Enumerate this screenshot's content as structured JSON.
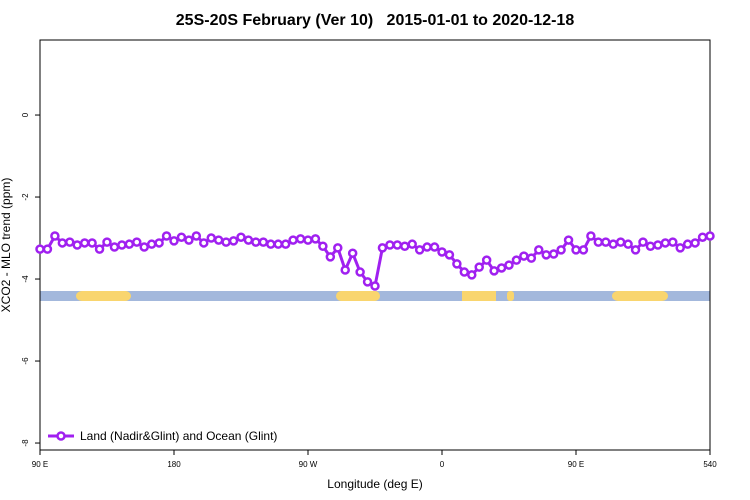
{
  "chart_data": {
    "type": "line",
    "title": "25S-20S February (Ver 10)   2015-01-01 to 2020-12-18",
    "x_label": "Longitude (deg E)",
    "y_label": "XCO2 - MLO trend (ppm)",
    "xlim": [
      90,
      540
    ],
    "ylim": [
      -8.17,
      1.83
    ],
    "xticks": [
      {
        "value": 90,
        "label": "90 E"
      },
      180,
      {
        "value": 270,
        "label": "90 W"
      },
      {
        "value": 360,
        "label": "0"
      },
      {
        "value": 450,
        "label": "90 E"
      },
      540
    ],
    "yticks": [
      0,
      -2,
      -4,
      -6,
      -8
    ],
    "legend": "bottom-left",
    "x": [
      90,
      95,
      100,
      105,
      110,
      115,
      120,
      125,
      130,
      135,
      140,
      145,
      150,
      155,
      160,
      165,
      170,
      175,
      180,
      185,
      190,
      195,
      200,
      205,
      210,
      215,
      220,
      225,
      230,
      235,
      240,
      245,
      250,
      255,
      260,
      265,
      270,
      275,
      280,
      285,
      290,
      295,
      300,
      305,
      310,
      315,
      320,
      325,
      330,
      335,
      340,
      345,
      350,
      355,
      360,
      365,
      370,
      375,
      380,
      385,
      390,
      395,
      400,
      405,
      410,
      415,
      420,
      425,
      430,
      435,
      440,
      445,
      450,
      455,
      460,
      465,
      470,
      475,
      480,
      485,
      490,
      495,
      500,
      505,
      510,
      515,
      520,
      525,
      530,
      535,
      540
    ],
    "series": [
      {
        "name": "Land (Nadir&Glint) and Ocean (Glint)",
        "color": "#a020f0",
        "values": [
          -3.27,
          -3.27,
          -2.95,
          -3.12,
          -3.1,
          -3.17,
          -3.12,
          -3.12,
          -3.27,
          -3.1,
          -3.22,
          -3.17,
          -3.15,
          -3.1,
          -3.22,
          -3.15,
          -3.12,
          -2.95,
          -3.07,
          -2.98,
          -3.05,
          -2.95,
          -3.12,
          -3.0,
          -3.05,
          -3.1,
          -3.07,
          -2.98,
          -3.05,
          -3.1,
          -3.1,
          -3.15,
          -3.15,
          -3.15,
          -3.05,
          -3.02,
          -3.05,
          -3.02,
          -3.2,
          -3.46,
          -3.24,
          -3.78,
          -3.37,
          -3.83,
          -4.07,
          -4.17,
          -3.24,
          -3.17,
          -3.17,
          -3.2,
          -3.15,
          -3.29,
          -3.22,
          -3.22,
          -3.34,
          -3.41,
          -3.63,
          -3.83,
          -3.9,
          -3.71,
          -3.54,
          -3.8,
          -3.73,
          -3.66,
          -3.54,
          -3.44,
          -3.49,
          -3.29,
          -3.41,
          -3.39,
          -3.29,
          -3.05,
          -3.29,
          -3.29,
          -2.95,
          -3.1,
          -3.1,
          -3.15,
          -3.1,
          -3.15,
          -3.29,
          -3.1,
          -3.2,
          -3.17,
          -3.12,
          -3.1,
          -3.24,
          -3.15,
          -3.12,
          -2.98,
          -2.95
        ]
      }
    ]
  }
}
